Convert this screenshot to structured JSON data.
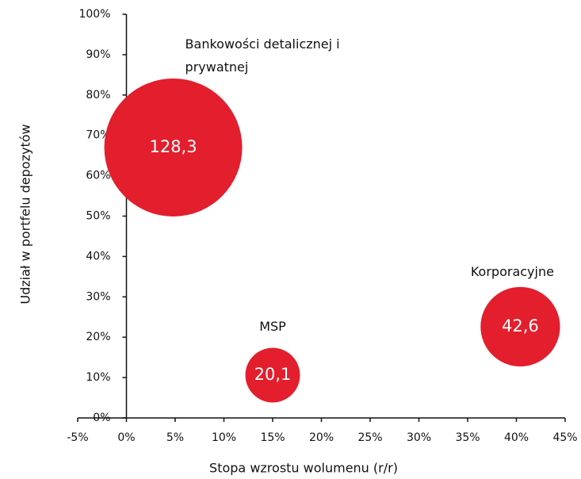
{
  "chart_data": {
    "type": "bubble",
    "x_label": "Stopa wzrostu wolumenu (r/r)",
    "y_label": "Udział w portfelu depozytów",
    "categories": [
      "Bankowości detalicznej i prywatnej",
      "MSP",
      "Korporacyjne"
    ],
    "x": [
      4.8,
      15,
      40.4
    ],
    "values": [
      67,
      10.6,
      22.6
    ],
    "sizes": [
      128.3,
      20.1,
      42.6
    ],
    "size_labels": [
      "128,3",
      "20,1",
      "42,6"
    ],
    "color": "#e31e2d",
    "xlim": [
      -5,
      45
    ],
    "xticks": [
      {
        "value": -5,
        "label": "-5%"
      },
      {
        "value": 0,
        "label": "0%"
      },
      {
        "value": 5,
        "label": "5%"
      },
      {
        "value": 10,
        "label": "10%"
      },
      {
        "value": 15,
        "label": "15%"
      },
      {
        "value": 20,
        "label": "20%"
      },
      {
        "value": 25,
        "label": "25%"
      },
      {
        "value": 30,
        "label": "30%"
      },
      {
        "value": 35,
        "label": "35%"
      },
      {
        "value": 40,
        "label": "40%"
      },
      {
        "value": 45,
        "label": "45%"
      }
    ],
    "ylim": [
      0,
      100
    ],
    "yticks": [
      {
        "value": 0,
        "label": "0%"
      },
      {
        "value": 10,
        "label": "10%"
      },
      {
        "value": 20,
        "label": "20%"
      },
      {
        "value": 30,
        "label": "30%"
      },
      {
        "value": 40,
        "label": "40%"
      },
      {
        "value": 50,
        "label": "50%"
      },
      {
        "value": 60,
        "label": "60%"
      },
      {
        "value": 70,
        "label": "70%"
      },
      {
        "value": 80,
        "label": "80%"
      },
      {
        "value": 90,
        "label": "90%"
      },
      {
        "value": 100,
        "label": "100%"
      }
    ]
  }
}
